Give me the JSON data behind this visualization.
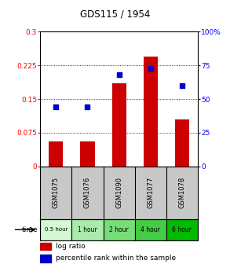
{
  "title": "GDS115 / 1954",
  "samples": [
    "GSM1075",
    "GSM1076",
    "GSM1090",
    "GSM1077",
    "GSM1078"
  ],
  "time_labels": [
    "0.5 hour",
    "1 hour",
    "2 hour",
    "4 hour",
    "6 hour"
  ],
  "time_colors": [
    "#d4f7d4",
    "#aaeaaa",
    "#77dd77",
    "#44cc44",
    "#00bb00"
  ],
  "log_ratio": [
    0.055,
    0.055,
    0.185,
    0.245,
    0.105
  ],
  "percentile": [
    0.44,
    0.44,
    0.68,
    0.73,
    0.6
  ],
  "bar_color": "#cc0000",
  "dot_color": "#0000cc",
  "ylim_left": [
    0.0,
    0.3
  ],
  "ylim_right": [
    0.0,
    1.0
  ],
  "yticks_left": [
    0.0,
    0.075,
    0.15,
    0.225,
    0.3
  ],
  "ytick_labels_left": [
    "0",
    "0.075",
    "0.15",
    "0.225",
    "0.3"
  ],
  "yticks_right": [
    0.0,
    0.25,
    0.5,
    0.75,
    1.0
  ],
  "ytick_labels_right": [
    "0",
    "25",
    "50",
    "75",
    "100%"
  ],
  "bar_width": 0.45,
  "bg_color": "#ffffff",
  "sample_bg": "#c8c8c8",
  "legend_dot_label": "log ratio",
  "legend_sq_label": "percentile rank within the sample"
}
